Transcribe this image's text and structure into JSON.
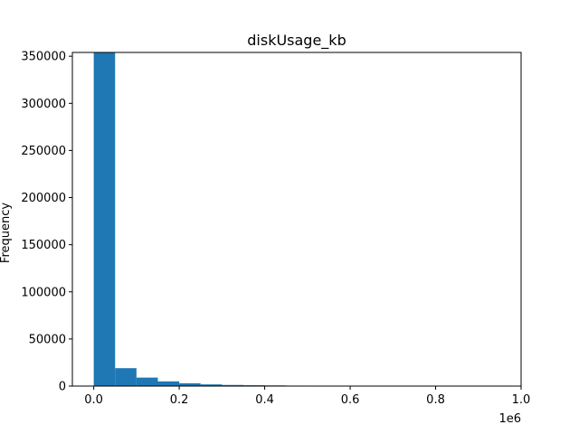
{
  "chart_data": {
    "type": "bar",
    "title": "diskUsage_kb",
    "xlabel": "",
    "ylabel": "Frequency",
    "x_offset_text": "1e6",
    "bin_edges": [
      0,
      0.05,
      0.1,
      0.15,
      0.2,
      0.25,
      0.3,
      0.35,
      0.4,
      0.45,
      0.5,
      0.55,
      0.6,
      0.65,
      0.7,
      0.75,
      0.8,
      0.85,
      0.9,
      0.95,
      1.0
    ],
    "values": [
      354000,
      19000,
      9000,
      5000,
      3000,
      1800,
      1200,
      900,
      700,
      500,
      200,
      100,
      100,
      80,
      60,
      50,
      40,
      30,
      20,
      10
    ],
    "xlim": [
      -0.05,
      1.0
    ],
    "ylim": [
      0,
      354000
    ],
    "x_ticks": [
      0.0,
      0.2,
      0.4,
      0.6,
      0.8,
      1.0
    ],
    "x_tick_labels": [
      "0.0",
      "0.2",
      "0.4",
      "0.6",
      "0.8",
      "1.0"
    ],
    "y_ticks": [
      0,
      50000,
      100000,
      150000,
      200000,
      250000,
      300000,
      350000
    ],
    "y_tick_labels": [
      "0",
      "50000",
      "100000",
      "150000",
      "200000",
      "250000",
      "300000",
      "350000"
    ],
    "bar_color": "#1f77b4",
    "grid": false,
    "legend": "none"
  }
}
